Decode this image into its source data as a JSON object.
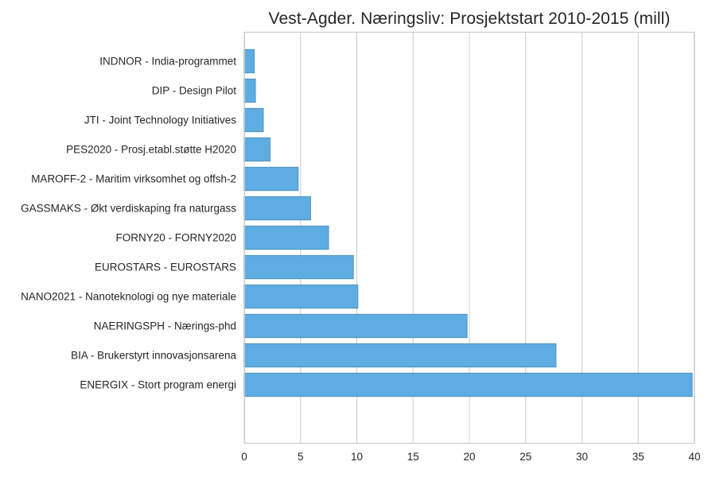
{
  "chart_data": {
    "type": "bar",
    "orientation": "horizontal",
    "title": "Vest-Agder. Næringsliv: Prosjektstart 2010-2015 (mill)",
    "xlabel": "",
    "ylabel": "",
    "xlim": [
      0,
      40
    ],
    "x_ticks": [
      "0",
      "5",
      "10",
      "15",
      "20",
      "25",
      "30",
      "35",
      "40"
    ],
    "grid": "vertical",
    "categories": [
      "INDNOR - India-programmet",
      "DIP - Design Pilot",
      "JTI - Joint Technology Initiatives",
      "PES2020 - Prosj.etabl.støtte H2020",
      "MAROFF-2 - Maritim virksomhet og offsh-2",
      "GASSMAKS - Økt verdiskaping fra naturgass",
      "FORNY20 - FORNY2020",
      "EUROSTARS - EUROSTARS",
      "NANO2021 - Nanoteknologi og nye materiale",
      "NAERINGSPH - Nærings-phd",
      "BIA - Brukerstyrt innovasjonsarena",
      "ENERGIX - Stort program energi"
    ],
    "values": [
      0.9,
      1.0,
      1.7,
      2.3,
      4.8,
      5.9,
      7.5,
      9.7,
      10.1,
      19.8,
      27.7,
      39.8
    ],
    "bar_color": "#5dade2",
    "bar_edge_color": "#4a8ab4",
    "grid_color": "#cccccc",
    "axis_color": "#c8c8c8"
  }
}
